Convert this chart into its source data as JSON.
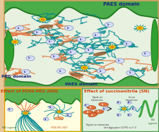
{
  "figsize": [
    2.23,
    1.89
  ],
  "dpi": 100,
  "bg_color": "#e8c89a",
  "main_panel": {
    "bg": "#e8f0e0",
    "border_color": "#c8a060",
    "title_top_right": "PAES domain",
    "title_bottom_left": "PEG domain",
    "title_bottom_center": "PAES domain"
  },
  "sub_left": {
    "bg": "#fffde0",
    "border_color": "#e0a000",
    "title": "Effect of POSS-PEG 2000"
  },
  "sub_right": {
    "bg": "#e0f0e0",
    "border_color": "#50a050",
    "title": "Effect of succinonitrile (SN)"
  },
  "green_color": "#30a030",
  "dark_green": "#207020",
  "teal_color": "#008890",
  "blue_color": "#3060c0",
  "orange_color": "#e06020",
  "yellow_poss": "#f0d020",
  "li_fill": "#d8e0f8",
  "li_edge": "#8090c0",
  "brown_color": "#a06030",
  "font_title": 5.0,
  "font_small": 2.8,
  "font_tiny": 2.2
}
